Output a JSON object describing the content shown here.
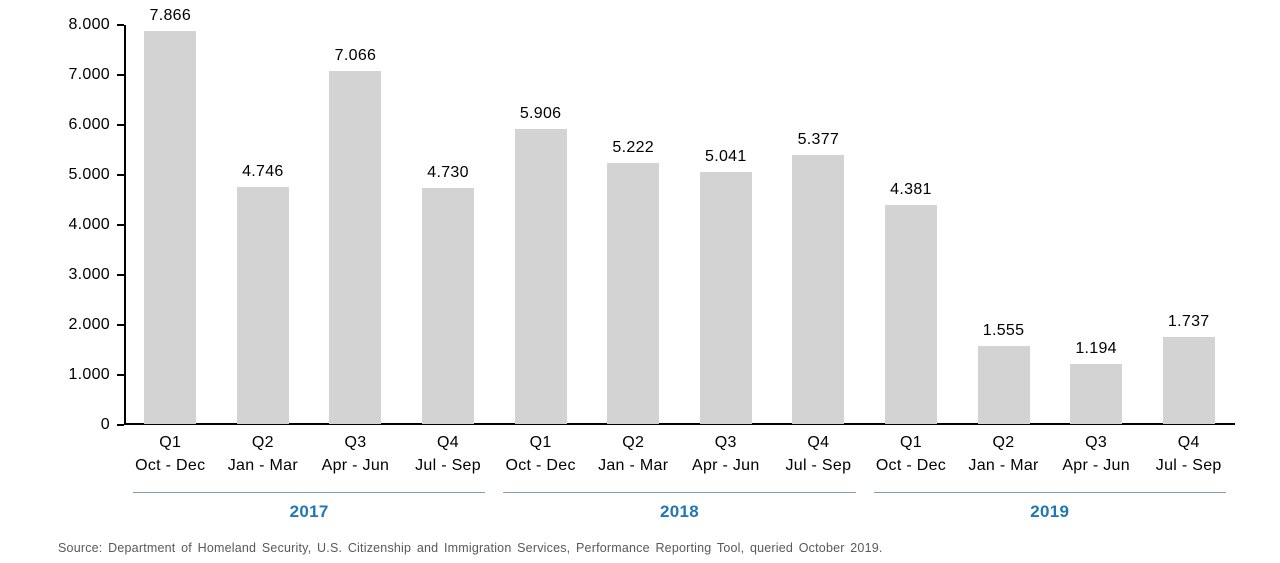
{
  "chart_data": {
    "type": "bar",
    "title": "",
    "xlabel": "",
    "ylabel": "",
    "grid": false,
    "legend": null,
    "bar_color": "#D3D3D3",
    "y_axis": {
      "min": 0,
      "max": 8000,
      "step": 1000,
      "tick_labels": [
        "0",
        "1.000",
        "2.000",
        "3.000",
        "4.000",
        "5.000",
        "6.000",
        "7.000",
        "8.000"
      ]
    },
    "categories": [
      {
        "quarter": "Q1",
        "months": "Oct - Dec",
        "year": "2017",
        "value": 7866,
        "label": "7.866"
      },
      {
        "quarter": "Q2",
        "months": "Jan - Mar",
        "year": "2017",
        "value": 4746,
        "label": "4.746"
      },
      {
        "quarter": "Q3",
        "months": "Apr - Jun",
        "year": "2017",
        "value": 7066,
        "label": "7.066"
      },
      {
        "quarter": "Q4",
        "months": "Jul - Sep",
        "year": "2017",
        "value": 4730,
        "label": "4.730"
      },
      {
        "quarter": "Q1",
        "months": "Oct - Dec",
        "year": "2018",
        "value": 5906,
        "label": "5.906"
      },
      {
        "quarter": "Q2",
        "months": "Jan - Mar",
        "year": "2018",
        "value": 5222,
        "label": "5.222"
      },
      {
        "quarter": "Q3",
        "months": "Apr - Jun",
        "year": "2018",
        "value": 5041,
        "label": "5.041"
      },
      {
        "quarter": "Q4",
        "months": "Jul - Sep",
        "year": "2018",
        "value": 5377,
        "label": "5.377"
      },
      {
        "quarter": "Q1",
        "months": "Oct - Dec",
        "year": "2019",
        "value": 4381,
        "label": "4.381"
      },
      {
        "quarter": "Q2",
        "months": "Jan - Mar",
        "year": "2019",
        "value": 1555,
        "label": "1.555"
      },
      {
        "quarter": "Q3",
        "months": "Apr - Jun",
        "year": "2019",
        "value": 1194,
        "label": "1.194"
      },
      {
        "quarter": "Q4",
        "months": "Jul - Sep",
        "year": "2019",
        "value": 1737,
        "label": "1.737"
      }
    ],
    "groups": [
      {
        "label": "2017",
        "start": 0,
        "end": 3
      },
      {
        "label": "2018",
        "start": 4,
        "end": 7
      },
      {
        "label": "2019",
        "start": 8,
        "end": 11
      }
    ]
  },
  "colors": {
    "bar": "#D3D3D3",
    "axis": "#000000",
    "text": "#000000",
    "year_label": "#1F77B4",
    "year_underline": "#7E9CBB",
    "source_text": "#595959"
  },
  "source": "Source: Department of Homeland Security, U.S. Citizenship and Immigration Services, Performance Reporting Tool, queried October 2019."
}
